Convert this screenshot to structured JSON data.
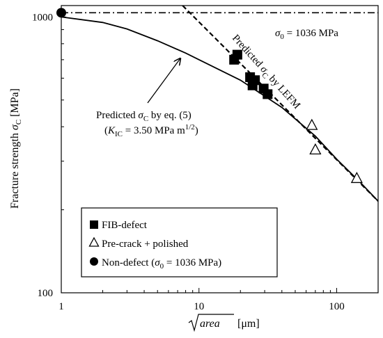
{
  "chart_data": {
    "type": "scatter",
    "x_scale": "log",
    "y_scale": "log",
    "xlim": [
      1,
      200
    ],
    "ylim": [
      100,
      1100
    ],
    "x_ticks": [
      1,
      10,
      100
    ],
    "x_tick_labels": [
      "1",
      "10",
      "100"
    ],
    "y_ticks": [
      100,
      1000
    ],
    "y_tick_labels": [
      "100",
      "1000"
    ],
    "xlabel": {
      "radicand": "area",
      "unit": " [μm]"
    },
    "ylabel": "Fracture strength σC [MPa]",
    "grid": false,
    "legend_position": "bottom-left",
    "series": [
      {
        "name": "FIB-defect",
        "marker": "filled-square",
        "points": [
          [
            18,
            700
          ],
          [
            19,
            730
          ],
          [
            23.5,
            605
          ],
          [
            24.5,
            565
          ],
          [
            25.5,
            590
          ],
          [
            29.5,
            550
          ],
          [
            31.5,
            525
          ]
        ]
      },
      {
        "name": "Pre-crack + polished",
        "marker": "open-triangle",
        "points": [
          [
            66,
            405
          ],
          [
            70,
            330
          ],
          [
            140,
            260
          ]
        ]
      },
      {
        "name": "Non-defect (σ0 = 1036 MPa)",
        "marker": "filled-circle",
        "points": [
          [
            1,
            1036
          ]
        ]
      }
    ],
    "reference_lines": [
      {
        "kind": "horizontal",
        "style": "dash-dot",
        "y": 1036,
        "label": "σ0 = 1036 MPa"
      },
      {
        "kind": "curve",
        "style": "dashed",
        "model": "LEFM",
        "label": "Predicted σC by LEFM",
        "points": [
          [
            7.6,
            1100
          ],
          [
            200,
            215
          ]
        ]
      },
      {
        "kind": "curve",
        "style": "solid",
        "model": "eq. (5)",
        "label": "Predicted σC by eq. (5)",
        "parameter": "KIC = 3.50 MPa m1/2",
        "points": [
          [
            1,
            1000
          ],
          [
            2,
            955
          ],
          [
            3,
            905
          ],
          [
            5,
            820
          ],
          [
            8,
            740
          ],
          [
            10,
            700
          ],
          [
            20,
            590
          ],
          [
            40,
            470
          ],
          [
            70,
            370
          ],
          [
            100,
            305
          ],
          [
            150,
            250
          ],
          [
            200,
            215
          ]
        ]
      }
    ],
    "annotations": [
      {
        "text": "σ0 = 1036 MPa"
      },
      {
        "text": "Predicted σC by LEFM"
      },
      {
        "text": "Predicted σC by eq. (5)"
      },
      {
        "text": "(KIC = 3.50 MPa m1/2)"
      }
    ]
  }
}
